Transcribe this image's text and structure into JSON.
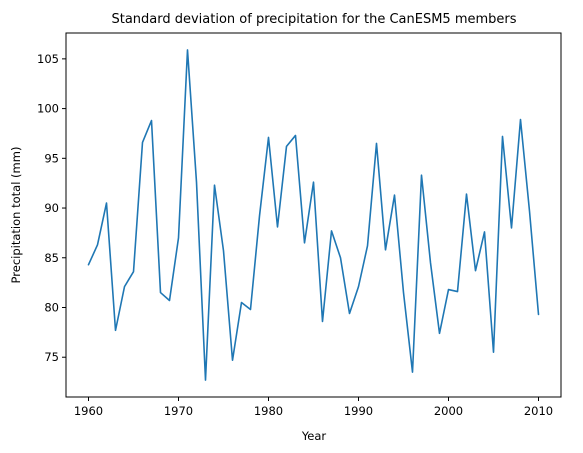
{
  "chart_data": {
    "type": "line",
    "title": "Standard deviation of precipitation for the CanESM5 members",
    "xlabel": "Year",
    "ylabel": "Precipitation total (mm)",
    "xlim": [
      1957.5,
      2012.5
    ],
    "ylim": [
      71.0,
      107.6
    ],
    "xticks": [
      1960,
      1970,
      1980,
      1990,
      2000,
      2010
    ],
    "yticks": [
      75,
      80,
      85,
      90,
      95,
      100,
      105
    ],
    "grid": false,
    "legend": "none",
    "color": "#1f77b4",
    "x": [
      1960,
      1961,
      1962,
      1963,
      1964,
      1965,
      1966,
      1967,
      1968,
      1969,
      1970,
      1971,
      1972,
      1973,
      1974,
      1975,
      1976,
      1977,
      1978,
      1979,
      1980,
      1981,
      1982,
      1983,
      1984,
      1985,
      1986,
      1987,
      1988,
      1989,
      1990,
      1991,
      1992,
      1993,
      1994,
      1995,
      1996,
      1997,
      1998,
      1999,
      2000,
      2001,
      2002,
      2003,
      2004,
      2005,
      2006,
      2007,
      2008,
      2009,
      2010
    ],
    "y": [
      84.3,
      86.3,
      90.5,
      77.7,
      82.1,
      83.6,
      96.6,
      98.8,
      81.5,
      80.7,
      87.0,
      105.9,
      92.6,
      72.7,
      92.3,
      85.7,
      74.7,
      80.5,
      79.8,
      89.2,
      97.1,
      88.1,
      96.2,
      97.3,
      86.5,
      92.6,
      78.6,
      87.7,
      85.0,
      79.4,
      82.1,
      86.2,
      96.5,
      85.8,
      91.3,
      81.5,
      73.5,
      93.3,
      84.5,
      77.4,
      81.8,
      81.6,
      91.4,
      83.7,
      87.6,
      75.5,
      97.2,
      88.0,
      98.9,
      89.7,
      79.3
    ]
  }
}
